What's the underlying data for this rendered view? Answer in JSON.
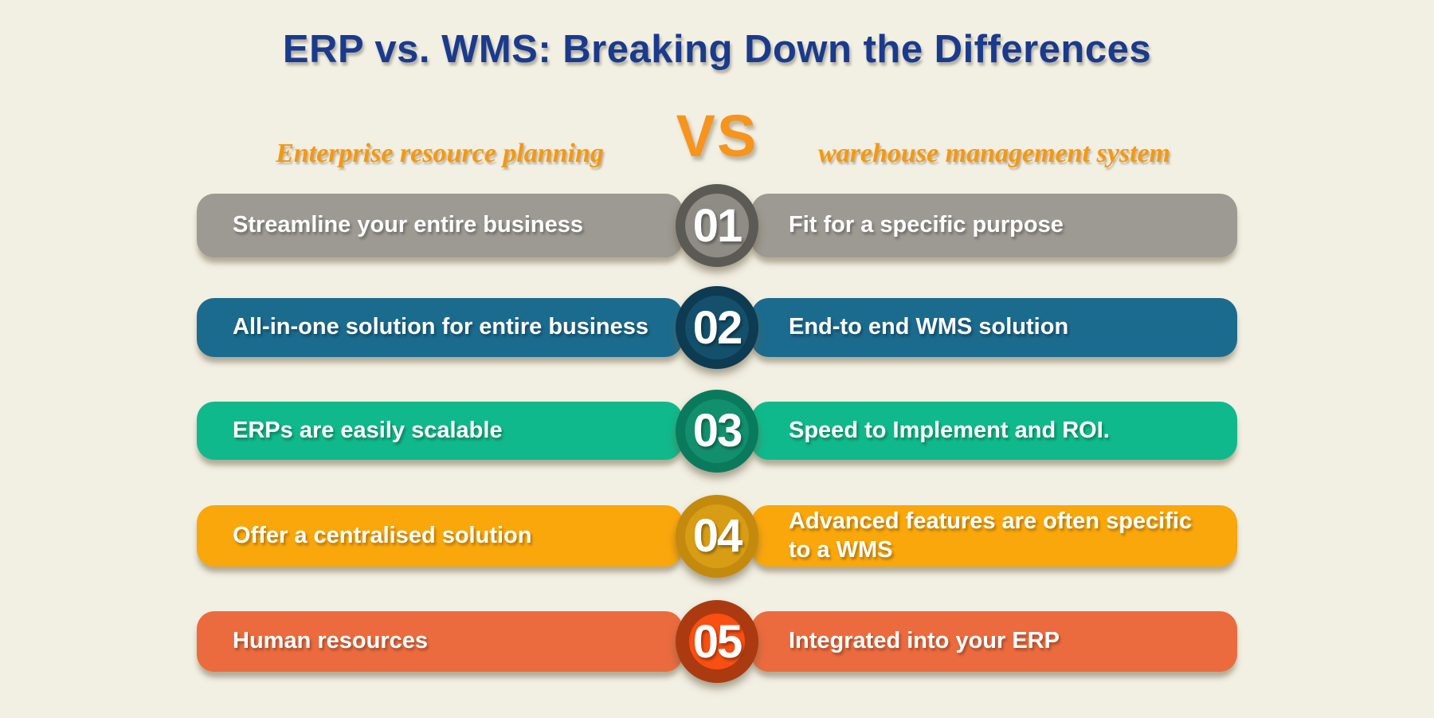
{
  "title": "ERP vs. WMS: Breaking Down the Differences",
  "comparison": {
    "left_heading": "Enterprise resource planning",
    "vs_label": "VS",
    "right_heading": "warehouse management system"
  },
  "rows": [
    {
      "number": "01",
      "left": "Streamline your entire business",
      "right": "Fit for a specific purpose",
      "bar_color": "#9D9A93",
      "ring_color": "#5C5A55",
      "inner_color": "#8F8C86"
    },
    {
      "number": "02",
      "left": "All-in-one solution for entire business",
      "right": "End-to end WMS solution",
      "bar_color": "#1B6B8E",
      "ring_color": "#0C3B52",
      "inner_color": "#14506B"
    },
    {
      "number": "03",
      "left": "ERPs are easily scalable",
      "right": "Speed to Implement and ROI.",
      "bar_color": "#10B98B",
      "ring_color": "#0A7A5D",
      "inner_color": "#12906E"
    },
    {
      "number": "04",
      "left": "Offer a centralised solution",
      "right": "Advanced features are often specific to a WMS",
      "bar_color": "#FAA70B",
      "ring_color": "#C48A0E",
      "inner_color": "#D89D15"
    },
    {
      "number": "05",
      "left": "Human resources",
      "right": "Integrated into your ERP",
      "bar_color": "#EB6B3E",
      "ring_color": "#AC3A10",
      "inner_color": "#F94F12"
    }
  ],
  "colors": {
    "background": "#F2EFE3",
    "title": "#1A3A8C",
    "accent_orange": "#F7941D"
  }
}
